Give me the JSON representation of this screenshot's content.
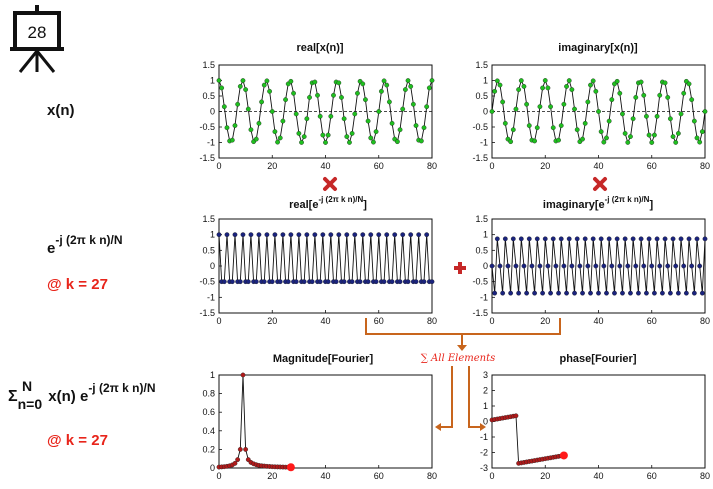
{
  "slide": {
    "number": "28"
  },
  "left_labels": {
    "xn": "x(n)",
    "kernel_base": "e",
    "kernel_exp": "-j (2π k n)/N",
    "k_label_1": "@ k = 27",
    "sum_sigma": "Σ",
    "sum_upper": "N",
    "sum_lower": "n=0",
    "sum_body": "x(n) e",
    "sum_exp": "-j (2π k n)/N",
    "k_label_2": "@ k = 27"
  },
  "titles": {
    "real_x": "real[x(n)]",
    "imag_x": "imaginary[x(n)]",
    "real_e_pre": "real[e",
    "real_e_exp": "-j (2π k n)/N",
    "real_e_post": "]",
    "imag_e_pre": "imaginary[e",
    "imag_e_exp": "-j (2π k n)/N",
    "imag_e_post": "]",
    "magnitude": "Magnitude[Fourier]",
    "phase": "phase[Fourier]"
  },
  "annotation": {
    "sum_all": "∑ All Elements"
  },
  "colors": {
    "green_marker": "#1fbf1f",
    "blue_marker": "#1a237e",
    "red_marker": "#b11a1a",
    "accent_red": "#e8251b",
    "cross_red": "#c62828",
    "arrow_orange": "#c8651d"
  },
  "chart_data": [
    {
      "id": "real_x",
      "type": "line",
      "title": "real[x(n)]",
      "xlim": [
        0,
        80
      ],
      "ylim": [
        -1.5,
        1.5
      ],
      "xticks": [
        0,
        20,
        40,
        60,
        80
      ],
      "yticks": [
        -1.5,
        -1,
        -0.5,
        0,
        0.5,
        1,
        1.5
      ],
      "marker_color": "#1fbf1f",
      "zero_line": true,
      "formula": "cos(2*pi*9*n/80)",
      "n_range": [
        0,
        80
      ]
    },
    {
      "id": "imag_x",
      "type": "line",
      "title": "imaginary[x(n)]",
      "xlim": [
        0,
        80
      ],
      "ylim": [
        -1.5,
        1.5
      ],
      "xticks": [
        0,
        20,
        40,
        60,
        80
      ],
      "yticks": [
        -1.5,
        -1,
        -0.5,
        0,
        0.5,
        1,
        1.5
      ],
      "marker_color": "#1fbf1f",
      "zero_line": true,
      "formula": "sin(2*pi*9*n/80)",
      "n_range": [
        0,
        80
      ]
    },
    {
      "id": "real_e",
      "type": "line",
      "title": "real[e^-j (2π k n)/N]",
      "xlim": [
        0,
        80
      ],
      "ylim": [
        -1.5,
        1.5
      ],
      "xticks": [
        0,
        20,
        40,
        60,
        80
      ],
      "yticks": [
        -1.5,
        -1,
        -0.5,
        0,
        0.5,
        1,
        1.5
      ],
      "marker_color": "#1a237e",
      "zero_line": false,
      "formula": "cos(2*pi*27*n/81)",
      "n_range": [
        0,
        80
      ]
    },
    {
      "id": "imag_e",
      "type": "line",
      "title": "imaginary[e^-j (2π k n)/N]",
      "xlim": [
        0,
        80
      ],
      "ylim": [
        -1.5,
        1.5
      ],
      "xticks": [
        0,
        20,
        40,
        60,
        80
      ],
      "yticks": [
        -1.5,
        -1,
        -0.5,
        0,
        0.5,
        1,
        1.5
      ],
      "marker_color": "#1a237e",
      "zero_line": false,
      "formula": "-sin(2*pi*27*n/81)",
      "n_range": [
        0,
        80
      ]
    },
    {
      "id": "magnitude",
      "type": "line",
      "title": "Magnitude[Fourier]",
      "xlim": [
        0,
        80
      ],
      "ylim": [
        0,
        1
      ],
      "xticks": [
        0,
        20,
        40,
        60,
        80
      ],
      "yticks": [
        0,
        0.2,
        0.4,
        0.6,
        0.8,
        1
      ],
      "marker_color": "#b11a1a",
      "x": [
        0,
        1,
        2,
        3,
        4,
        5,
        6,
        7,
        8,
        9,
        10,
        11,
        12,
        13,
        14,
        15,
        16,
        17,
        18,
        19,
        20,
        21,
        22,
        23,
        24,
        25,
        26,
        27
      ],
      "y": [
        0.01,
        0.012,
        0.014,
        0.018,
        0.024,
        0.033,
        0.05,
        0.09,
        0.2,
        1.0,
        0.2,
        0.09,
        0.06,
        0.045,
        0.035,
        0.028,
        0.024,
        0.021,
        0.018,
        0.016,
        0.014,
        0.013,
        0.012,
        0.011,
        0.01,
        0.009,
        0.009,
        0.008
      ],
      "highlight_last": true,
      "trailing_dashes": true
    },
    {
      "id": "phase",
      "type": "line",
      "title": "phase[Fourier]",
      "xlim": [
        0,
        80
      ],
      "ylim": [
        -3,
        3
      ],
      "xticks": [
        0,
        20,
        40,
        60,
        80
      ],
      "yticks": [
        -3,
        -2,
        -1,
        0,
        1,
        2,
        3
      ],
      "marker_color": "#b11a1a",
      "x": [
        0,
        1,
        2,
        3,
        4,
        5,
        6,
        7,
        8,
        9,
        10,
        11,
        12,
        13,
        14,
        15,
        16,
        17,
        18,
        19,
        20,
        21,
        22,
        23,
        24,
        25,
        26,
        27
      ],
      "y": [
        0.1,
        0.13,
        0.16,
        0.19,
        0.22,
        0.25,
        0.28,
        0.31,
        0.34,
        0.37,
        -2.7,
        -2.67,
        -2.64,
        -2.61,
        -2.58,
        -2.55,
        -2.52,
        -2.49,
        -2.46,
        -2.43,
        -2.4,
        -2.37,
        -2.34,
        -2.31,
        -2.28,
        -2.25,
        -2.22,
        -2.19
      ],
      "highlight_last": true,
      "trailing_dashes": false
    }
  ]
}
